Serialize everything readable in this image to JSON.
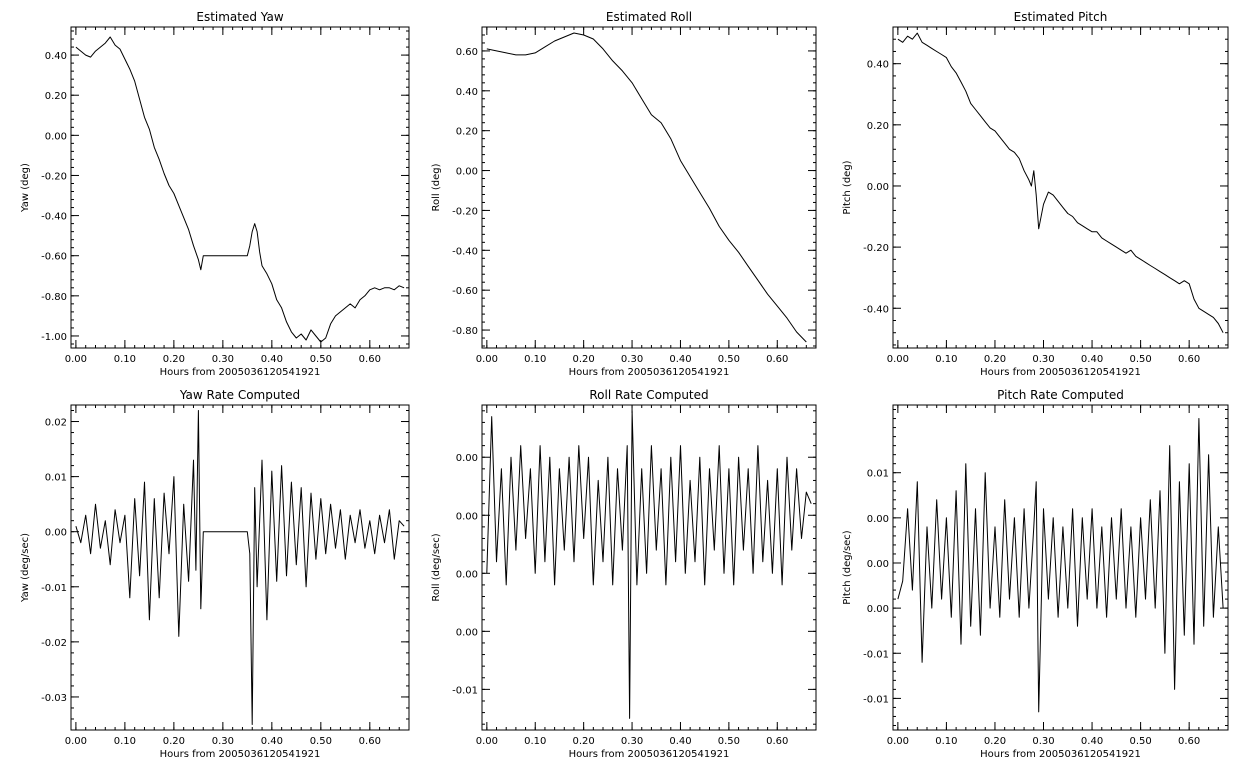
{
  "chart_data": [
    {
      "type": "line",
      "title": "Estimated Yaw",
      "xlabel": "Hours from 2005036120541921",
      "ylabel": "Yaw (deg)",
      "xlim": [
        -0.01,
        0.68
      ],
      "ylim": [
        -1.06,
        0.54
      ],
      "x_ticks": [
        0.0,
        0.1,
        0.2,
        0.3,
        0.4,
        0.5,
        0.6
      ],
      "x_tick_labels": [
        "0.00",
        "0.10",
        "0.20",
        "0.30",
        "0.40",
        "0.50",
        "0.60"
      ],
      "y_ticks": [
        -1.0,
        -0.8,
        -0.6,
        -0.4,
        -0.2,
        0.0,
        0.2,
        0.4
      ],
      "y_tick_labels": [
        "-1.00",
        "-0.80",
        "-0.60",
        "-0.40",
        "-0.20",
        "0.00",
        "0.20",
        "0.40"
      ],
      "series": [
        {
          "x": [
            0.0,
            0.01,
            0.02,
            0.03,
            0.04,
            0.05,
            0.06,
            0.07,
            0.08,
            0.09,
            0.1,
            0.11,
            0.12,
            0.13,
            0.14,
            0.15,
            0.16,
            0.17,
            0.18,
            0.19,
            0.2,
            0.21,
            0.22,
            0.23,
            0.24,
            0.25,
            0.255,
            0.26,
            0.27,
            0.28,
            0.29,
            0.3,
            0.31,
            0.32,
            0.33,
            0.34,
            0.35,
            0.355,
            0.36,
            0.365,
            0.37,
            0.375,
            0.38,
            0.39,
            0.4,
            0.41,
            0.42,
            0.43,
            0.44,
            0.45,
            0.46,
            0.47,
            0.48,
            0.49,
            0.5,
            0.51,
            0.52,
            0.53,
            0.54,
            0.55,
            0.56,
            0.57,
            0.58,
            0.59,
            0.6,
            0.61,
            0.62,
            0.63,
            0.64,
            0.65,
            0.66,
            0.67
          ],
          "y": [
            0.44,
            0.42,
            0.4,
            0.39,
            0.42,
            0.44,
            0.46,
            0.49,
            0.45,
            0.43,
            0.38,
            0.33,
            0.27,
            0.18,
            0.09,
            0.03,
            -0.06,
            -0.12,
            -0.19,
            -0.25,
            -0.29,
            -0.35,
            -0.41,
            -0.47,
            -0.55,
            -0.62,
            -0.67,
            -0.6,
            -0.6,
            -0.6,
            -0.6,
            -0.6,
            -0.6,
            -0.6,
            -0.6,
            -0.6,
            -0.6,
            -0.55,
            -0.48,
            -0.44,
            -0.48,
            -0.58,
            -0.65,
            -0.69,
            -0.74,
            -0.82,
            -0.86,
            -0.93,
            -0.98,
            -1.01,
            -0.99,
            -1.02,
            -0.97,
            -1.0,
            -1.03,
            -1.01,
            -0.94,
            -0.9,
            -0.88,
            -0.86,
            -0.84,
            -0.86,
            -0.82,
            -0.8,
            -0.77,
            -0.76,
            -0.77,
            -0.76,
            -0.76,
            -0.77,
            -0.75,
            -0.76
          ]
        }
      ]
    },
    {
      "type": "line",
      "title": "Estimated Roll",
      "xlabel": "Hours from 2005036120541921",
      "ylabel": "Roll (deg)",
      "xlim": [
        -0.01,
        0.68
      ],
      "ylim": [
        -0.89,
        0.72
      ],
      "x_ticks": [
        0.0,
        0.1,
        0.2,
        0.3,
        0.4,
        0.5,
        0.6
      ],
      "x_tick_labels": [
        "0.00",
        "0.10",
        "0.20",
        "0.30",
        "0.40",
        "0.50",
        "0.60"
      ],
      "y_ticks": [
        -0.8,
        -0.6,
        -0.4,
        -0.2,
        0.0,
        0.2,
        0.4,
        0.6
      ],
      "y_tick_labels": [
        "-0.80",
        "-0.60",
        "-0.40",
        "-0.20",
        "0.00",
        "0.20",
        "0.40",
        "0.60"
      ],
      "series": [
        {
          "x": [
            0.0,
            0.02,
            0.04,
            0.06,
            0.08,
            0.1,
            0.12,
            0.14,
            0.16,
            0.18,
            0.2,
            0.22,
            0.24,
            0.26,
            0.28,
            0.3,
            0.32,
            0.34,
            0.36,
            0.38,
            0.4,
            0.42,
            0.44,
            0.46,
            0.48,
            0.5,
            0.52,
            0.54,
            0.56,
            0.58,
            0.6,
            0.62,
            0.64,
            0.66
          ],
          "y": [
            0.61,
            0.6,
            0.59,
            0.58,
            0.58,
            0.59,
            0.62,
            0.65,
            0.67,
            0.69,
            0.68,
            0.66,
            0.61,
            0.55,
            0.5,
            0.44,
            0.36,
            0.28,
            0.24,
            0.16,
            0.05,
            -0.03,
            -0.11,
            -0.19,
            -0.28,
            -0.35,
            -0.41,
            -0.48,
            -0.55,
            -0.62,
            -0.68,
            -0.74,
            -0.81,
            -0.86
          ]
        }
      ]
    },
    {
      "type": "line",
      "title": "Estimated Pitch",
      "xlabel": "Hours from 2005036120541921",
      "ylabel": "Pitch (deg)",
      "xlim": [
        -0.01,
        0.68
      ],
      "ylim": [
        -0.53,
        0.52
      ],
      "x_ticks": [
        0.0,
        0.1,
        0.2,
        0.3,
        0.4,
        0.5,
        0.6
      ],
      "x_tick_labels": [
        "0.00",
        "0.10",
        "0.20",
        "0.30",
        "0.40",
        "0.50",
        "0.60"
      ],
      "y_ticks": [
        -0.4,
        -0.2,
        0.0,
        0.2,
        0.4
      ],
      "y_tick_labels": [
        "-0.40",
        "-0.20",
        "0.00",
        "0.20",
        "0.40"
      ],
      "series": [
        {
          "x": [
            0.0,
            0.01,
            0.02,
            0.03,
            0.04,
            0.05,
            0.06,
            0.07,
            0.08,
            0.09,
            0.1,
            0.11,
            0.12,
            0.13,
            0.14,
            0.15,
            0.16,
            0.17,
            0.18,
            0.19,
            0.2,
            0.21,
            0.22,
            0.23,
            0.24,
            0.25,
            0.26,
            0.27,
            0.275,
            0.28,
            0.285,
            0.29,
            0.3,
            0.31,
            0.32,
            0.33,
            0.34,
            0.35,
            0.36,
            0.37,
            0.38,
            0.39,
            0.4,
            0.41,
            0.42,
            0.43,
            0.44,
            0.45,
            0.46,
            0.47,
            0.48,
            0.49,
            0.5,
            0.51,
            0.52,
            0.53,
            0.54,
            0.55,
            0.56,
            0.57,
            0.58,
            0.59,
            0.6,
            0.61,
            0.62,
            0.63,
            0.64,
            0.65,
            0.66,
            0.67
          ],
          "y": [
            0.48,
            0.47,
            0.49,
            0.48,
            0.5,
            0.47,
            0.46,
            0.45,
            0.44,
            0.43,
            0.42,
            0.39,
            0.37,
            0.34,
            0.31,
            0.27,
            0.25,
            0.23,
            0.21,
            0.19,
            0.18,
            0.16,
            0.14,
            0.12,
            0.11,
            0.09,
            0.05,
            0.02,
            0.0,
            0.05,
            -0.03,
            -0.14,
            -0.06,
            -0.02,
            -0.03,
            -0.05,
            -0.07,
            -0.09,
            -0.1,
            -0.12,
            -0.13,
            -0.14,
            -0.15,
            -0.15,
            -0.17,
            -0.18,
            -0.19,
            -0.2,
            -0.21,
            -0.22,
            -0.21,
            -0.23,
            -0.24,
            -0.25,
            -0.26,
            -0.27,
            -0.28,
            -0.29,
            -0.3,
            -0.31,
            -0.32,
            -0.31,
            -0.32,
            -0.37,
            -0.4,
            -0.41,
            -0.42,
            -0.43,
            -0.45,
            -0.48
          ]
        }
      ]
    },
    {
      "type": "line",
      "title": "Yaw Rate Computed",
      "xlabel": "Hours from 2005036120541921",
      "ylabel": "Yaw (deg/sec)",
      "xlim": [
        -0.01,
        0.68
      ],
      "ylim": [
        -0.036,
        0.023
      ],
      "x_ticks": [
        0.0,
        0.1,
        0.2,
        0.3,
        0.4,
        0.5,
        0.6
      ],
      "x_tick_labels": [
        "0.00",
        "0.10",
        "0.20",
        "0.30",
        "0.40",
        "0.50",
        "0.60"
      ],
      "y_ticks": [
        -0.03,
        -0.02,
        -0.01,
        0.0,
        0.01,
        0.02
      ],
      "y_tick_labels": [
        "-0.03",
        "-0.02",
        "-0.01",
        "0.00",
        "0.01",
        "0.02"
      ],
      "series": [
        {
          "x": [
            0.0,
            0.01,
            0.02,
            0.03,
            0.04,
            0.05,
            0.06,
            0.07,
            0.08,
            0.09,
            0.1,
            0.11,
            0.12,
            0.13,
            0.14,
            0.15,
            0.16,
            0.17,
            0.18,
            0.19,
            0.2,
            0.21,
            0.22,
            0.23,
            0.24,
            0.245,
            0.25,
            0.255,
            0.26,
            0.27,
            0.28,
            0.29,
            0.3,
            0.31,
            0.32,
            0.33,
            0.34,
            0.35,
            0.355,
            0.36,
            0.365,
            0.37,
            0.38,
            0.39,
            0.4,
            0.41,
            0.42,
            0.43,
            0.44,
            0.45,
            0.46,
            0.47,
            0.48,
            0.49,
            0.5,
            0.51,
            0.52,
            0.53,
            0.54,
            0.55,
            0.56,
            0.57,
            0.58,
            0.59,
            0.6,
            0.61,
            0.62,
            0.63,
            0.64,
            0.65,
            0.66,
            0.67
          ],
          "y": [
            0.001,
            -0.002,
            0.003,
            -0.004,
            0.005,
            -0.003,
            0.002,
            -0.006,
            0.004,
            -0.002,
            0.003,
            -0.012,
            0.006,
            -0.008,
            0.009,
            -0.016,
            0.006,
            -0.012,
            0.007,
            -0.004,
            0.01,
            -0.019,
            0.005,
            -0.009,
            0.013,
            -0.007,
            0.022,
            -0.014,
            0.0,
            0.0,
            0.0,
            0.0,
            0.0,
            0.0,
            0.0,
            0.0,
            0.0,
            0.0,
            -0.004,
            -0.035,
            0.008,
            -0.01,
            0.013,
            -0.016,
            0.011,
            -0.009,
            0.012,
            -0.008,
            0.009,
            -0.006,
            0.008,
            -0.01,
            0.007,
            -0.005,
            0.006,
            -0.004,
            0.005,
            -0.003,
            0.004,
            -0.005,
            0.003,
            -0.002,
            0.004,
            -0.003,
            0.002,
            -0.004,
            0.003,
            -0.002,
            0.004,
            -0.005,
            0.002,
            0.001
          ]
        }
      ]
    },
    {
      "type": "line",
      "title": "Roll Rate Computed",
      "xlabel": "Hours from 2005036120541921",
      "ylabel": "Roll (deg/sec)",
      "xlim": [
        -0.01,
        0.68
      ],
      "ylim": [
        -0.0185,
        0.0095
      ],
      "x_ticks": [
        0.0,
        0.1,
        0.2,
        0.3,
        0.4,
        0.5,
        0.6
      ],
      "x_tick_labels": [
        "0.00",
        "0.10",
        "0.20",
        "0.30",
        "0.40",
        "0.50",
        "0.60"
      ],
      "y_ticks": [
        -0.015,
        -0.01,
        -0.005,
        0.0,
        0.005
      ],
      "y_tick_labels": [
        "-0.01",
        "0.00",
        "0.00",
        "0.00",
        "0.00"
      ],
      "series": [
        {
          "x": [
            0.0,
            0.01,
            0.02,
            0.03,
            0.04,
            0.05,
            0.06,
            0.07,
            0.08,
            0.09,
            0.1,
            0.11,
            0.12,
            0.13,
            0.14,
            0.15,
            0.16,
            0.17,
            0.18,
            0.19,
            0.2,
            0.21,
            0.22,
            0.23,
            0.24,
            0.25,
            0.26,
            0.27,
            0.28,
            0.29,
            0.295,
            0.3,
            0.31,
            0.32,
            0.33,
            0.34,
            0.35,
            0.36,
            0.37,
            0.38,
            0.39,
            0.4,
            0.41,
            0.42,
            0.43,
            0.44,
            0.45,
            0.46,
            0.47,
            0.48,
            0.49,
            0.5,
            0.51,
            0.52,
            0.53,
            0.54,
            0.55,
            0.56,
            0.57,
            0.58,
            0.59,
            0.6,
            0.61,
            0.62,
            0.63,
            0.64,
            0.65,
            0.66,
            0.67
          ],
          "y": [
            -0.005,
            0.0085,
            -0.004,
            0.004,
            -0.006,
            0.005,
            -0.003,
            0.006,
            -0.002,
            0.004,
            -0.005,
            0.006,
            -0.004,
            0.005,
            -0.006,
            0.004,
            -0.003,
            0.005,
            -0.004,
            0.006,
            -0.002,
            0.005,
            -0.006,
            0.003,
            -0.004,
            0.005,
            -0.006,
            0.004,
            -0.003,
            0.006,
            -0.0175,
            0.009,
            -0.006,
            0.004,
            -0.005,
            0.006,
            -0.003,
            0.004,
            -0.006,
            0.005,
            -0.004,
            0.006,
            -0.005,
            0.003,
            -0.004,
            0.005,
            -0.006,
            0.004,
            -0.003,
            0.006,
            -0.005,
            0.004,
            -0.006,
            0.005,
            -0.003,
            0.004,
            -0.005,
            0.006,
            -0.004,
            0.003,
            -0.005,
            0.004,
            -0.006,
            0.005,
            -0.003,
            0.004,
            -0.002,
            0.002,
            0.001
          ]
        }
      ]
    },
    {
      "type": "line",
      "title": "Pitch Rate Computed",
      "xlabel": "Hours from 2005036120541921",
      "ylabel": "Pitch (deg/sec)",
      "xlim": [
        -0.01,
        0.68
      ],
      "ylim": [
        -0.0185,
        0.0175
      ],
      "x_ticks": [
        0.0,
        0.1,
        0.2,
        0.3,
        0.4,
        0.5,
        0.6
      ],
      "x_tick_labels": [
        "0.00",
        "0.10",
        "0.20",
        "0.30",
        "0.40",
        "0.50",
        "0.60"
      ],
      "y_ticks": [
        -0.015,
        -0.01,
        -0.005,
        0.0,
        0.005,
        0.01
      ],
      "y_tick_labels": [
        "-0.01",
        "-0.01",
        "0.00",
        "0.00",
        "0.00",
        "0.01"
      ],
      "series": [
        {
          "x": [
            0.0,
            0.01,
            0.02,
            0.03,
            0.04,
            0.05,
            0.06,
            0.07,
            0.08,
            0.09,
            0.1,
            0.11,
            0.12,
            0.13,
            0.14,
            0.15,
            0.16,
            0.17,
            0.18,
            0.19,
            0.2,
            0.21,
            0.22,
            0.23,
            0.24,
            0.25,
            0.26,
            0.27,
            0.28,
            0.285,
            0.29,
            0.3,
            0.31,
            0.32,
            0.33,
            0.34,
            0.35,
            0.36,
            0.37,
            0.38,
            0.39,
            0.4,
            0.41,
            0.42,
            0.43,
            0.44,
            0.45,
            0.46,
            0.47,
            0.48,
            0.49,
            0.5,
            0.51,
            0.52,
            0.53,
            0.54,
            0.55,
            0.56,
            0.57,
            0.58,
            0.59,
            0.6,
            0.61,
            0.62,
            0.63,
            0.64,
            0.65,
            0.66,
            0.67
          ],
          "y": [
            -0.004,
            -0.002,
            0.006,
            -0.003,
            0.009,
            -0.011,
            0.004,
            -0.005,
            0.007,
            -0.004,
            0.005,
            -0.006,
            0.008,
            -0.009,
            0.011,
            -0.007,
            0.006,
            -0.008,
            0.01,
            -0.005,
            0.004,
            -0.006,
            0.007,
            -0.004,
            0.005,
            -0.006,
            0.006,
            -0.005,
            0.004,
            0.009,
            -0.0165,
            0.006,
            -0.004,
            0.005,
            -0.006,
            0.004,
            -0.005,
            0.006,
            -0.007,
            0.005,
            -0.004,
            0.006,
            -0.005,
            0.004,
            -0.006,
            0.005,
            -0.004,
            0.006,
            -0.005,
            0.004,
            -0.006,
            0.005,
            -0.004,
            0.007,
            -0.005,
            0.008,
            -0.01,
            0.013,
            -0.014,
            0.009,
            -0.008,
            0.011,
            -0.009,
            0.016,
            -0.007,
            0.012,
            -0.006,
            0.004,
            -0.005
          ]
        }
      ]
    }
  ]
}
